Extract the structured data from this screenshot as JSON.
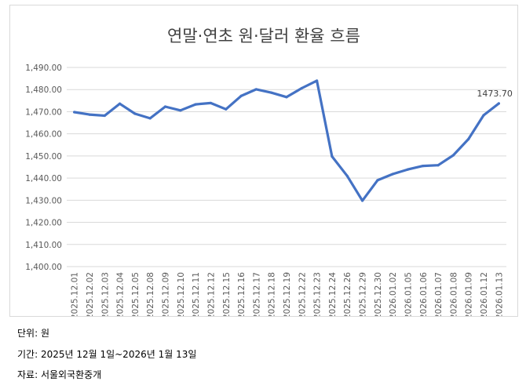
{
  "chart_data": {
    "type": "line",
    "title": "연말·연초 원·달러 환율 흐름",
    "xlabel": "",
    "ylabel": "",
    "ylim": [
      1400,
      1490
    ],
    "yticks": [
      "1,400.00",
      "1,410.00",
      "1,420.00",
      "1,430.00",
      "1,440.00",
      "1,450.00",
      "1,460.00",
      "1,470.00",
      "1,480.00",
      "1,490.00"
    ],
    "grid": true,
    "categories": [
      "2025.12.01",
      "2025.12.02",
      "2025.12.03",
      "2025.12.04",
      "2025.12.05",
      "2025.12.08",
      "2025.12.09",
      "2025.12.10",
      "2025.12.11",
      "2025.12.12",
      "2025.12.15",
      "2025.12.16",
      "2025.12.17",
      "2025.12.18",
      "2025.12.19",
      "2025.12.22",
      "2025.12.23",
      "2025.12.24",
      "2025.12.26",
      "2025.12.29",
      "2025.12.30",
      "2026.01.02",
      "2026.01.05",
      "2026.01.06",
      "2026.01.07",
      "2026.01.08",
      "2026.01.09",
      "2026.01.12",
      "2026.01.13"
    ],
    "series": [
      {
        "color": "#4472c4",
        "values": [
          1469.8,
          1468.7,
          1468.2,
          1473.6,
          1469.1,
          1467.0,
          1472.3,
          1470.6,
          1473.3,
          1473.9,
          1471.1,
          1477.1,
          1480.1,
          1478.6,
          1476.6,
          1480.6,
          1484.0,
          1449.8,
          1441.0,
          1429.8,
          1439.0,
          1441.8,
          1443.9,
          1445.5,
          1445.8,
          1450.3,
          1457.6,
          1468.4,
          1473.7
        ]
      }
    ],
    "data_label": "1473.70"
  },
  "notes": {
    "unit": "단위: 원",
    "period": "기간: 2025년 12월 1일~2026년 1월 13일",
    "source": "자료: 서울외국환중개"
  }
}
